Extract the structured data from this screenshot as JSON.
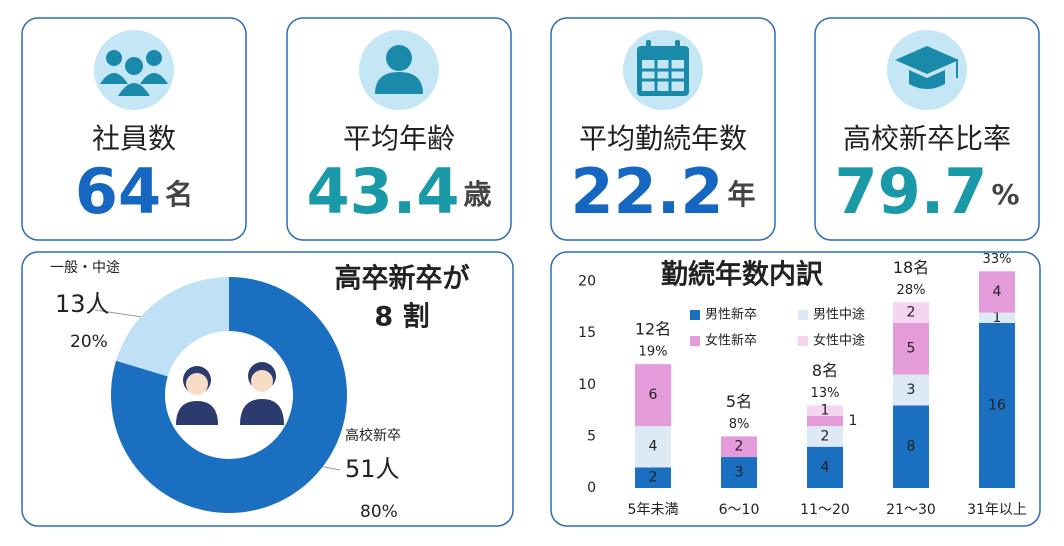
{
  "cards": [
    {
      "label": "社員数",
      "value": 64,
      "unit": "名",
      "color": "#1667c1"
    },
    {
      "label": "平均年齢",
      "value": 43.4,
      "unit": "歳",
      "color": "#1a9aa8"
    },
    {
      "label": "平均勤続年数",
      "value": 22.2,
      "unit": "年",
      "color": "#1667c1"
    },
    {
      "label": "高校新卒比率",
      "value": 79.7,
      "unit": "%",
      "color": "#1a9aa8"
    }
  ],
  "chart_data": [
    {
      "type": "pie",
      "title": [
        "高卒新卒が",
        "8 割"
      ],
      "categories": [
        "高校新卒",
        "一般・中途"
      ],
      "values": [
        51,
        13
      ],
      "value_labels": [
        "51人",
        "13人"
      ],
      "shares": [
        80,
        20
      ],
      "share_labels": [
        "80%",
        "20%"
      ],
      "colors": [
        "#1a6fc0",
        "#bfe0f5"
      ]
    },
    {
      "type": "stacked-bar",
      "title": "勤続年数内訳",
      "categories": [
        "5年未満",
        "6～10",
        "11～20",
        "21～30",
        "31年以上"
      ],
      "series": [
        {
          "name": "男性新卒",
          "color": "#1a6fc0",
          "values": [
            2,
            3,
            4,
            8,
            16
          ]
        },
        {
          "name": "男性中途",
          "color": "#dde9f5",
          "values": [
            4,
            0,
            2,
            3,
            1
          ]
        },
        {
          "name": "女性新卒",
          "color": "#e39bd9",
          "values": [
            6,
            2,
            1,
            5,
            4
          ]
        },
        {
          "name": "女性中途",
          "color": "#f6d5f0",
          "values": [
            0,
            0,
            1,
            2,
            0
          ]
        }
      ],
      "totals": [
        12,
        5,
        8,
        18,
        null
      ],
      "total_labels": [
        "12名",
        "5名",
        "8名",
        "18名",
        null
      ],
      "shares": [
        19,
        8,
        13,
        28,
        33
      ],
      "share_labels": [
        "19%",
        "8%",
        "13%",
        "28%",
        "33%"
      ],
      "ylim": [
        0,
        22
      ],
      "yticks": [
        0,
        5,
        10,
        15,
        20
      ],
      "legend": "upper left"
    }
  ]
}
